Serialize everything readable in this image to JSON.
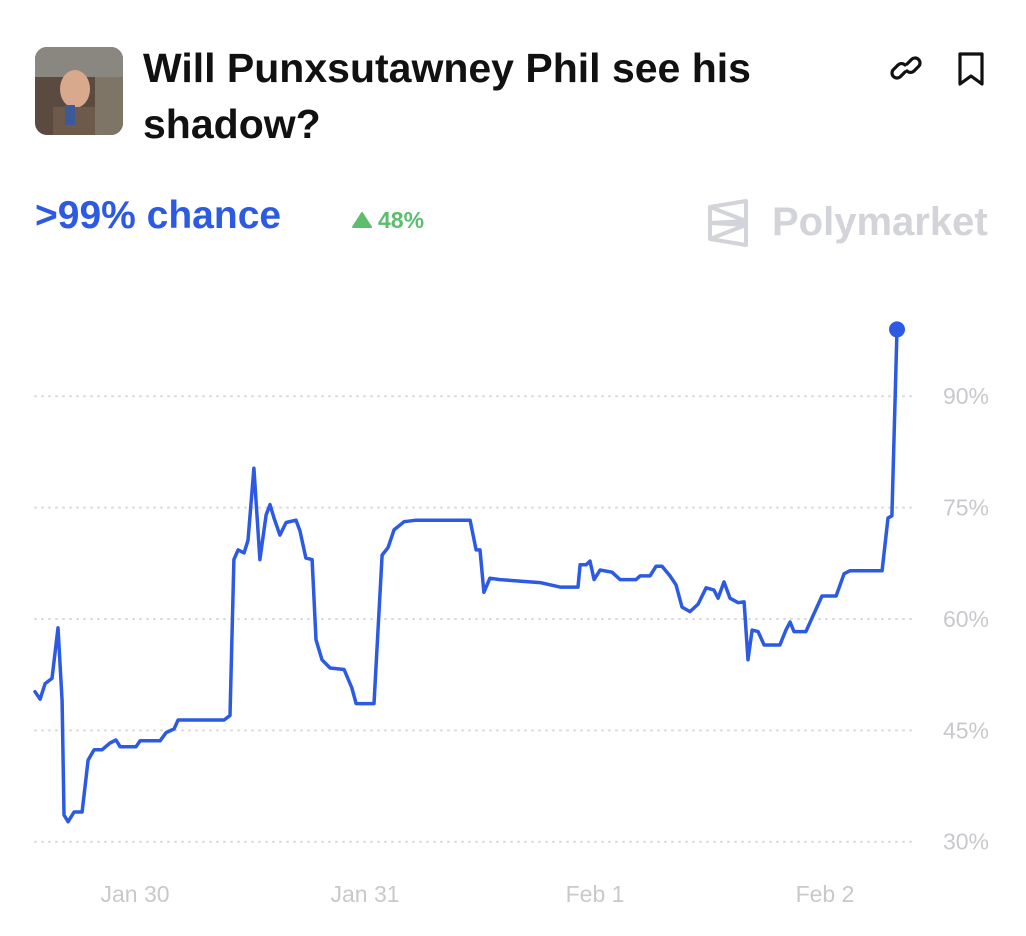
{
  "header": {
    "title": "Will Punxsutawney Phil see his shadow?",
    "chance": ">99% chance",
    "change": "48%",
    "brand": "Polymarket"
  },
  "chart_data": {
    "type": "line",
    "x": [
      -0.435,
      -0.413,
      -0.391,
      -0.361,
      -0.335,
      -0.317,
      -0.309,
      -0.291,
      -0.265,
      -0.23,
      -0.204,
      -0.178,
      -0.143,
      -0.109,
      -0.083,
      -0.065,
      0.004,
      0.022,
      0.109,
      0.135,
      0.17,
      0.187,
      0.387,
      0.413,
      0.43,
      0.448,
      0.474,
      0.491,
      0.517,
      0.543,
      0.57,
      0.587,
      0.604,
      0.63,
      0.657,
      0.7,
      0.717,
      0.743,
      0.77,
      0.787,
      0.813,
      0.848,
      0.909,
      0.943,
      0.961,
      1.039,
      1.074,
      1.1,
      1.126,
      1.17,
      1.222,
      1.457,
      1.483,
      1.5,
      1.517,
      1.543,
      1.587,
      1.761,
      1.848,
      1.926,
      1.935,
      1.961,
      1.978,
      1.996,
      2.022,
      2.074,
      2.109,
      2.178,
      2.196,
      2.239,
      2.265,
      2.291,
      2.326,
      2.352,
      2.378,
      2.413,
      2.448,
      2.483,
      2.517,
      2.535,
      2.561,
      2.587,
      2.622,
      2.648,
      2.665,
      2.683,
      2.709,
      2.735,
      2.804,
      2.83,
      2.848,
      2.865,
      2.917,
      2.943,
      2.987,
      3.048,
      3.083,
      3.109,
      3.248,
      3.274,
      3.291,
      3.313
    ],
    "series": [
      {
        "color": "#2c5ae3",
        "values": [
          50.2,
          49.2,
          51.3,
          52,
          58.8,
          49,
          33.6,
          32.7,
          34,
          34,
          41,
          42.4,
          42.4,
          43.3,
          43.7,
          42.8,
          42.8,
          43.6,
          43.6,
          44.7,
          45.2,
          46.4,
          46.4,
          47,
          68,
          69.3,
          68.9,
          70.6,
          80.3,
          68,
          74,
          75.4,
          73.6,
          71.3,
          73,
          73.3,
          71.9,
          68.2,
          68,
          57.2,
          54.5,
          53.4,
          53.2,
          50.7,
          48.6,
          48.6,
          68.6,
          69.6,
          72,
          73.1,
          73.3,
          73.3,
          69.3,
          69.3,
          63.6,
          65.5,
          65.3,
          64.9,
          64.3,
          64.3,
          67.3,
          67.3,
          67.8,
          65.3,
          66.6,
          66.3,
          65.3,
          65.3,
          65.8,
          65.8,
          67.1,
          67.1,
          65.8,
          64.6,
          61.6,
          61,
          62,
          64.2,
          63.9,
          62.8,
          65,
          62.8,
          62.2,
          62.3,
          54.5,
          58.5,
          58.3,
          56.5,
          56.5,
          58.5,
          59.6,
          58.3,
          58.3,
          60.1,
          63.1,
          63.1,
          66.1,
          66.5,
          66.5,
          73.6,
          73.9,
          99
        ]
      }
    ],
    "xlim": [
      -0.435,
      3.313
    ],
    "xticks": [
      {
        "value": 0,
        "label": "Jan 30"
      },
      {
        "value": 1,
        "label": "Jan 31"
      },
      {
        "value": 2,
        "label": "Feb 1"
      },
      {
        "value": 3,
        "label": "Feb 2"
      }
    ],
    "ylim": [
      27,
      100
    ],
    "yticks": [
      {
        "value": 30,
        "label": "30%"
      },
      {
        "value": 45,
        "label": "45%"
      },
      {
        "value": 60,
        "label": "60%"
      },
      {
        "value": 75,
        "label": "75%"
      },
      {
        "value": 90,
        "label": "90%"
      }
    ],
    "grid": true
  }
}
